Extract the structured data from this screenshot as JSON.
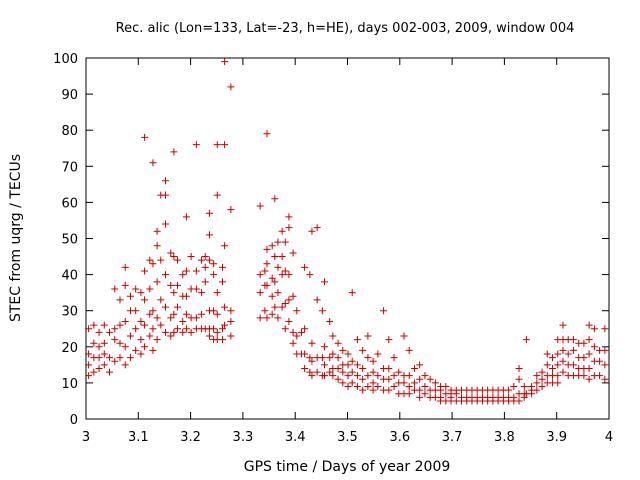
{
  "chart_data": {
    "type": "scatter",
    "title": "Rec. alic (Lon=133, Lat=-23, h=HE), days 002-003, 2009, window 004",
    "xlabel": "GPS time / Days of year 2009",
    "ylabel": "STEC from uqrg / TECUs",
    "xlim": [
      3,
      4
    ],
    "ylim": [
      0,
      100
    ],
    "x_ticks": [
      "3",
      "3.1",
      "3.2",
      "3.3",
      "3.4",
      "3.5",
      "3.6",
      "3.7",
      "3.8",
      "3.9",
      "4"
    ],
    "y_ticks": [
      "0",
      "10",
      "20",
      "30",
      "40",
      "50",
      "60",
      "70",
      "80",
      "90",
      "100"
    ],
    "grid": false,
    "legend": "none",
    "marker": "+",
    "color": "#cc0000",
    "points": [
      [
        3.005,
        25
      ],
      [
        3.005,
        18
      ],
      [
        3.005,
        15
      ],
      [
        3.005,
        12
      ],
      [
        3.015,
        26
      ],
      [
        3.015,
        21
      ],
      [
        3.015,
        17
      ],
      [
        3.015,
        13
      ],
      [
        3.025,
        24
      ],
      [
        3.025,
        20
      ],
      [
        3.025,
        17
      ],
      [
        3.025,
        14
      ],
      [
        3.035,
        26
      ],
      [
        3.035,
        21
      ],
      [
        3.035,
        18
      ],
      [
        3.035,
        15
      ],
      [
        3.045,
        24
      ],
      [
        3.045,
        17
      ],
      [
        3.045,
        13
      ],
      [
        3.055,
        36
      ],
      [
        3.055,
        25
      ],
      [
        3.055,
        22
      ],
      [
        3.055,
        16
      ],
      [
        3.065,
        33
      ],
      [
        3.065,
        26
      ],
      [
        3.065,
        21
      ],
      [
        3.065,
        17
      ],
      [
        3.075,
        42
      ],
      [
        3.075,
        37
      ],
      [
        3.075,
        27
      ],
      [
        3.075,
        20
      ],
      [
        3.075,
        15
      ],
      [
        3.085,
        34
      ],
      [
        3.085,
        30
      ],
      [
        3.085,
        23
      ],
      [
        3.085,
        17
      ],
      [
        3.095,
        36
      ],
      [
        3.095,
        30
      ],
      [
        3.095,
        25
      ],
      [
        3.095,
        19
      ],
      [
        3.105,
        35
      ],
      [
        3.105,
        27
      ],
      [
        3.105,
        22
      ],
      [
        3.105,
        18
      ],
      [
        3.112,
        78
      ],
      [
        3.112,
        41
      ],
      [
        3.112,
        33
      ],
      [
        3.112,
        26
      ],
      [
        3.112,
        20
      ],
      [
        3.122,
        44
      ],
      [
        3.122,
        36
      ],
      [
        3.122,
        29
      ],
      [
        3.122,
        23
      ],
      [
        3.128,
        71
      ],
      [
        3.128,
        43
      ],
      [
        3.128,
        30
      ],
      [
        3.128,
        25
      ],
      [
        3.128,
        19
      ],
      [
        3.136,
        52
      ],
      [
        3.136,
        48
      ],
      [
        3.136,
        38
      ],
      [
        3.136,
        28
      ],
      [
        3.136,
        22
      ],
      [
        3.143,
        62
      ],
      [
        3.143,
        44
      ],
      [
        3.143,
        33
      ],
      [
        3.143,
        26
      ],
      [
        3.152,
        66
      ],
      [
        3.152,
        62
      ],
      [
        3.152,
        54
      ],
      [
        3.152,
        40
      ],
      [
        3.152,
        31
      ],
      [
        3.152,
        24
      ],
      [
        3.162,
        46
      ],
      [
        3.162,
        37
      ],
      [
        3.162,
        28
      ],
      [
        3.162,
        23
      ],
      [
        3.168,
        74
      ],
      [
        3.168,
        45
      ],
      [
        3.168,
        35
      ],
      [
        3.168,
        29
      ],
      [
        3.168,
        24
      ],
      [
        3.175,
        44
      ],
      [
        3.175,
        37
      ],
      [
        3.175,
        31
      ],
      [
        3.175,
        25
      ],
      [
        3.185,
        40
      ],
      [
        3.185,
        34
      ],
      [
        3.185,
        27
      ],
      [
        3.185,
        24
      ],
      [
        3.192,
        56
      ],
      [
        3.192,
        41
      ],
      [
        3.192,
        34
      ],
      [
        3.192,
        29
      ],
      [
        3.192,
        25
      ],
      [
        3.201,
        45
      ],
      [
        3.201,
        36
      ],
      [
        3.201,
        28
      ],
      [
        3.201,
        24
      ],
      [
        3.211,
        76
      ],
      [
        3.211,
        41
      ],
      [
        3.211,
        36
      ],
      [
        3.211,
        28
      ],
      [
        3.211,
        25
      ],
      [
        3.221,
        44
      ],
      [
        3.221,
        35
      ],
      [
        3.221,
        29
      ],
      [
        3.221,
        25
      ],
      [
        3.228,
        45
      ],
      [
        3.228,
        42
      ],
      [
        3.228,
        38
      ],
      [
        3.228,
        25
      ],
      [
        3.236,
        57
      ],
      [
        3.236,
        51
      ],
      [
        3.236,
        44
      ],
      [
        3.236,
        30
      ],
      [
        3.236,
        25
      ],
      [
        3.236,
        23
      ],
      [
        3.244,
        43
      ],
      [
        3.244,
        40
      ],
      [
        3.244,
        30
      ],
      [
        3.244,
        25
      ],
      [
        3.244,
        22
      ],
      [
        3.251,
        76
      ],
      [
        3.251,
        62
      ],
      [
        3.251,
        35
      ],
      [
        3.251,
        29
      ],
      [
        3.251,
        24
      ],
      [
        3.251,
        22
      ],
      [
        3.261,
        42
      ],
      [
        3.261,
        38
      ],
      [
        3.261,
        25
      ],
      [
        3.261,
        22
      ],
      [
        3.265,
        99
      ],
      [
        3.265,
        76
      ],
      [
        3.265,
        48
      ],
      [
        3.265,
        31
      ],
      [
        3.265,
        26
      ],
      [
        3.277,
        92
      ],
      [
        3.277,
        58
      ],
      [
        3.277,
        30
      ],
      [
        3.277,
        27
      ],
      [
        3.277,
        23
      ],
      [
        3.333,
        59
      ],
      [
        3.333,
        40
      ],
      [
        3.333,
        35
      ],
      [
        3.333,
        28
      ],
      [
        3.342,
        41
      ],
      [
        3.342,
        37
      ],
      [
        3.342,
        30
      ],
      [
        3.346,
        79
      ],
      [
        3.346,
        47
      ],
      [
        3.346,
        43
      ],
      [
        3.346,
        37
      ],
      [
        3.346,
        28
      ],
      [
        3.356,
        48
      ],
      [
        3.356,
        39
      ],
      [
        3.356,
        34
      ],
      [
        3.356,
        29
      ],
      [
        3.361,
        61
      ],
      [
        3.361,
        45
      ],
      [
        3.361,
        38
      ],
      [
        3.361,
        31
      ],
      [
        3.367,
        49
      ],
      [
        3.367,
        42
      ],
      [
        3.367,
        35
      ],
      [
        3.367,
        28
      ],
      [
        3.375,
        52
      ],
      [
        3.375,
        45
      ],
      [
        3.375,
        40
      ],
      [
        3.375,
        31
      ],
      [
        3.381,
        49
      ],
      [
        3.381,
        41
      ],
      [
        3.381,
        32
      ],
      [
        3.381,
        25
      ],
      [
        3.388,
        56
      ],
      [
        3.388,
        53
      ],
      [
        3.388,
        40
      ],
      [
        3.388,
        33
      ],
      [
        3.388,
        27
      ],
      [
        3.396,
        46
      ],
      [
        3.396,
        34
      ],
      [
        3.396,
        24
      ],
      [
        3.396,
        21
      ],
      [
        3.403,
        30
      ],
      [
        3.403,
        23
      ],
      [
        3.403,
        18
      ],
      [
        3.412,
        24
      ],
      [
        3.412,
        18
      ],
      [
        3.418,
        42
      ],
      [
        3.418,
        25
      ],
      [
        3.418,
        18
      ],
      [
        3.418,
        14
      ],
      [
        3.428,
        40
      ],
      [
        3.428,
        17
      ],
      [
        3.428,
        13
      ],
      [
        3.432,
        52
      ],
      [
        3.432,
        21
      ],
      [
        3.432,
        16
      ],
      [
        3.432,
        12
      ],
      [
        3.442,
        53
      ],
      [
        3.442,
        33
      ],
      [
        3.442,
        17
      ],
      [
        3.442,
        13
      ],
      [
        3.452,
        30
      ],
      [
        3.452,
        17
      ],
      [
        3.452,
        12
      ],
      [
        3.456,
        38
      ],
      [
        3.456,
        20
      ],
      [
        3.456,
        15
      ],
      [
        3.456,
        12
      ],
      [
        3.466,
        27
      ],
      [
        3.466,
        17
      ],
      [
        3.466,
        13
      ],
      [
        3.472,
        23
      ],
      [
        3.472,
        18
      ],
      [
        3.472,
        14
      ],
      [
        3.472,
        12
      ],
      [
        3.482,
        21
      ],
      [
        3.482,
        17
      ],
      [
        3.482,
        14
      ],
      [
        3.482,
        11
      ],
      [
        3.491,
        19
      ],
      [
        3.491,
        15
      ],
      [
        3.491,
        13
      ],
      [
        3.491,
        10
      ],
      [
        3.501,
        18
      ],
      [
        3.501,
        15
      ],
      [
        3.501,
        12
      ],
      [
        3.501,
        9
      ],
      [
        3.509,
        35
      ],
      [
        3.509,
        16
      ],
      [
        3.509,
        13
      ],
      [
        3.509,
        10
      ],
      [
        3.519,
        22
      ],
      [
        3.519,
        15
      ],
      [
        3.519,
        12
      ],
      [
        3.519,
        9
      ],
      [
        3.529,
        19
      ],
      [
        3.529,
        14
      ],
      [
        3.529,
        11
      ],
      [
        3.529,
        8
      ],
      [
        3.539,
        23
      ],
      [
        3.539,
        17
      ],
      [
        3.539,
        12
      ],
      [
        3.539,
        9
      ],
      [
        3.549,
        16
      ],
      [
        3.549,
        13
      ],
      [
        3.549,
        10
      ],
      [
        3.549,
        8
      ],
      [
        3.558,
        18
      ],
      [
        3.558,
        12
      ],
      [
        3.558,
        9
      ],
      [
        3.569,
        30
      ],
      [
        3.569,
        14
      ],
      [
        3.569,
        11
      ],
      [
        3.569,
        8
      ],
      [
        3.579,
        22
      ],
      [
        3.579,
        14
      ],
      [
        3.579,
        11
      ],
      [
        3.579,
        8
      ],
      [
        3.589,
        17
      ],
      [
        3.589,
        12
      ],
      [
        3.589,
        9
      ],
      [
        3.598,
        13
      ],
      [
        3.598,
        10
      ],
      [
        3.598,
        7
      ],
      [
        3.608,
        23
      ],
      [
        3.608,
        12
      ],
      [
        3.608,
        10
      ],
      [
        3.608,
        7
      ],
      [
        3.618,
        19
      ],
      [
        3.618,
        12
      ],
      [
        3.618,
        9
      ],
      [
        3.618,
        7
      ],
      [
        3.628,
        14
      ],
      [
        3.628,
        10
      ],
      [
        3.628,
        8
      ],
      [
        3.638,
        15
      ],
      [
        3.638,
        11
      ],
      [
        3.638,
        8
      ],
      [
        3.638,
        6
      ],
      [
        3.648,
        12
      ],
      [
        3.648,
        9
      ],
      [
        3.648,
        7
      ],
      [
        3.658,
        11
      ],
      [
        3.658,
        8
      ],
      [
        3.658,
        6
      ],
      [
        3.668,
        10
      ],
      [
        3.668,
        8
      ],
      [
        3.668,
        6
      ],
      [
        3.678,
        9
      ],
      [
        3.678,
        8
      ],
      [
        3.678,
        6
      ],
      [
        3.678,
        5
      ],
      [
        3.688,
        9
      ],
      [
        3.688,
        7
      ],
      [
        3.688,
        5
      ],
      [
        3.698,
        8
      ],
      [
        3.698,
        7
      ],
      [
        3.698,
        6
      ],
      [
        3.698,
        5
      ],
      [
        3.708,
        8
      ],
      [
        3.708,
        7
      ],
      [
        3.708,
        5
      ],
      [
        3.718,
        8
      ],
      [
        3.718,
        6
      ],
      [
        3.718,
        5
      ],
      [
        3.728,
        8
      ],
      [
        3.728,
        6
      ],
      [
        3.728,
        5
      ],
      [
        3.738,
        8
      ],
      [
        3.738,
        6
      ],
      [
        3.738,
        5
      ],
      [
        3.748,
        8
      ],
      [
        3.748,
        6
      ],
      [
        3.748,
        5
      ],
      [
        3.758,
        8
      ],
      [
        3.758,
        6
      ],
      [
        3.758,
        5
      ],
      [
        3.768,
        8
      ],
      [
        3.768,
        6
      ],
      [
        3.768,
        5
      ],
      [
        3.778,
        8
      ],
      [
        3.778,
        6
      ],
      [
        3.778,
        5
      ],
      [
        3.788,
        8
      ],
      [
        3.788,
        6
      ],
      [
        3.788,
        5
      ],
      [
        3.798,
        8
      ],
      [
        3.798,
        6
      ],
      [
        3.798,
        5
      ],
      [
        3.808,
        8
      ],
      [
        3.808,
        6
      ],
      [
        3.808,
        5
      ],
      [
        3.818,
        9
      ],
      [
        3.818,
        6
      ],
      [
        3.818,
        5
      ],
      [
        3.828,
        14
      ],
      [
        3.828,
        11
      ],
      [
        3.828,
        7
      ],
      [
        3.828,
        5
      ],
      [
        3.838,
        9
      ],
      [
        3.838,
        7
      ],
      [
        3.838,
        6
      ],
      [
        3.842,
        22
      ],
      [
        3.842,
        7
      ],
      [
        3.852,
        9
      ],
      [
        3.852,
        8
      ],
      [
        3.852,
        7
      ],
      [
        3.862,
        12
      ],
      [
        3.862,
        10
      ],
      [
        3.862,
        8
      ],
      [
        3.872,
        13
      ],
      [
        3.872,
        11
      ],
      [
        3.872,
        9
      ],
      [
        3.882,
        18
      ],
      [
        3.882,
        15
      ],
      [
        3.882,
        12
      ],
      [
        3.882,
        10
      ],
      [
        3.892,
        17
      ],
      [
        3.892,
        14
      ],
      [
        3.892,
        12
      ],
      [
        3.892,
        10
      ],
      [
        3.902,
        22
      ],
      [
        3.902,
        18
      ],
      [
        3.902,
        15
      ],
      [
        3.902,
        12
      ],
      [
        3.902,
        10
      ],
      [
        3.912,
        26
      ],
      [
        3.912,
        22
      ],
      [
        3.912,
        19
      ],
      [
        3.912,
        16
      ],
      [
        3.912,
        13
      ],
      [
        3.922,
        22
      ],
      [
        3.922,
        18
      ],
      [
        3.922,
        15
      ],
      [
        3.922,
        12
      ],
      [
        3.932,
        22
      ],
      [
        3.932,
        19
      ],
      [
        3.932,
        15
      ],
      [
        3.932,
        12
      ],
      [
        3.942,
        21
      ],
      [
        3.942,
        17
      ],
      [
        3.942,
        14
      ],
      [
        3.942,
        12
      ],
      [
        3.952,
        21
      ],
      [
        3.952,
        17
      ],
      [
        3.952,
        14
      ],
      [
        3.952,
        12
      ],
      [
        3.962,
        26
      ],
      [
        3.962,
        22
      ],
      [
        3.962,
        18
      ],
      [
        3.962,
        14
      ],
      [
        3.962,
        11
      ],
      [
        3.972,
        25
      ],
      [
        3.972,
        20
      ],
      [
        3.972,
        16
      ],
      [
        3.972,
        12
      ],
      [
        3.982,
        19
      ],
      [
        3.982,
        16
      ],
      [
        3.982,
        12
      ],
      [
        3.992,
        25
      ],
      [
        3.992,
        19
      ],
      [
        3.992,
        15
      ],
      [
        3.992,
        11
      ]
    ]
  }
}
